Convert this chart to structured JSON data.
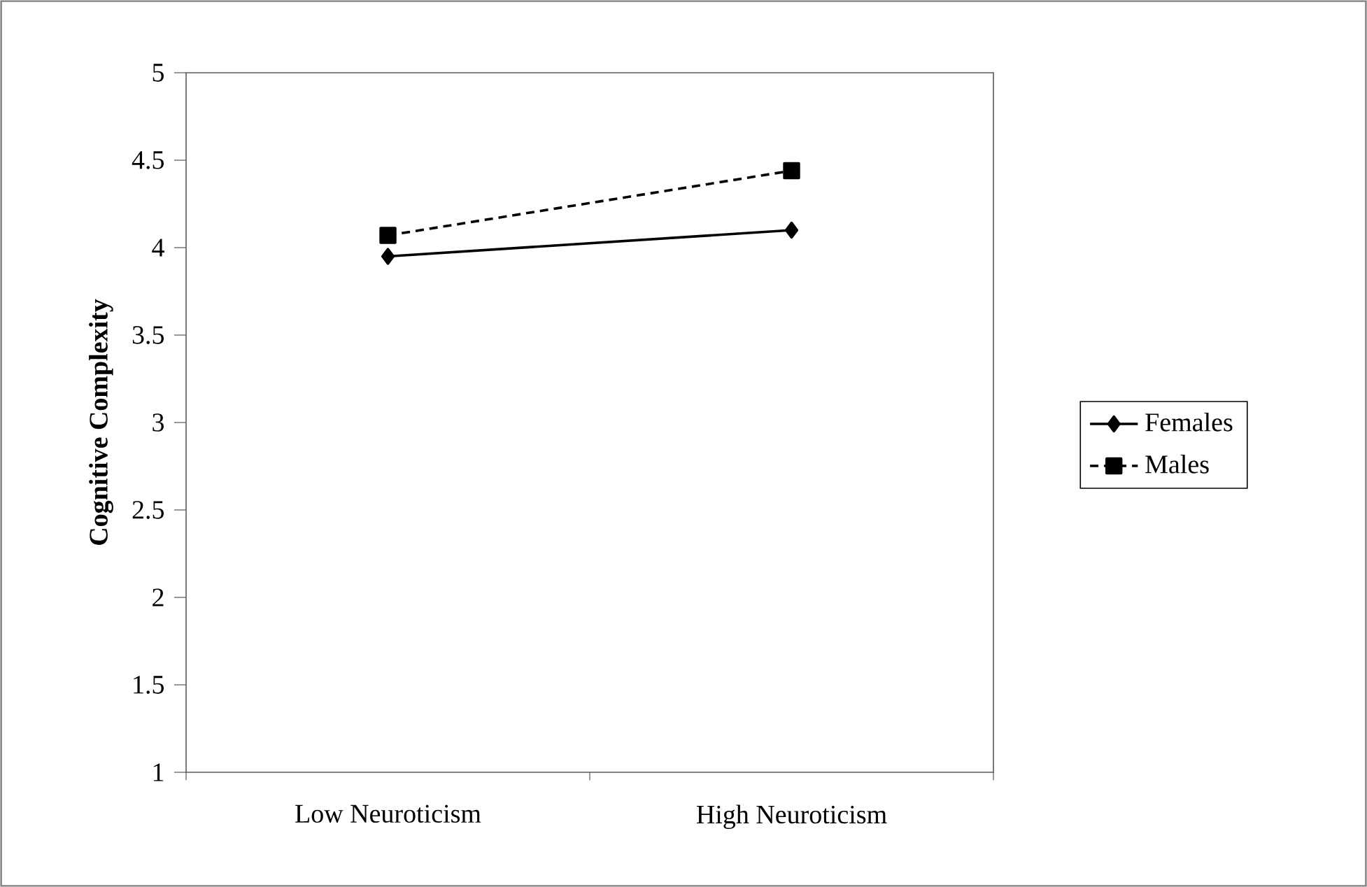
{
  "chart_data": {
    "type": "line",
    "ylabel": "Cognitive Complexity",
    "categories": [
      "Low Neuroticism",
      "High Neuroticism"
    ],
    "series": [
      {
        "name": "Females",
        "color": "#000000",
        "values": [
          3.95,
          4.1
        ],
        "marker": "diamond",
        "line_style": "solid"
      },
      {
        "name": "Males",
        "color": "#000000",
        "values": [
          4.07,
          4.44
        ],
        "marker": "square",
        "line_style": "dashed"
      }
    ],
    "ylim": [
      1,
      5
    ],
    "yticks": [
      1,
      1.5,
      2,
      2.5,
      3,
      3.5,
      4,
      4.5,
      5
    ],
    "grid": false,
    "legend": "right"
  }
}
